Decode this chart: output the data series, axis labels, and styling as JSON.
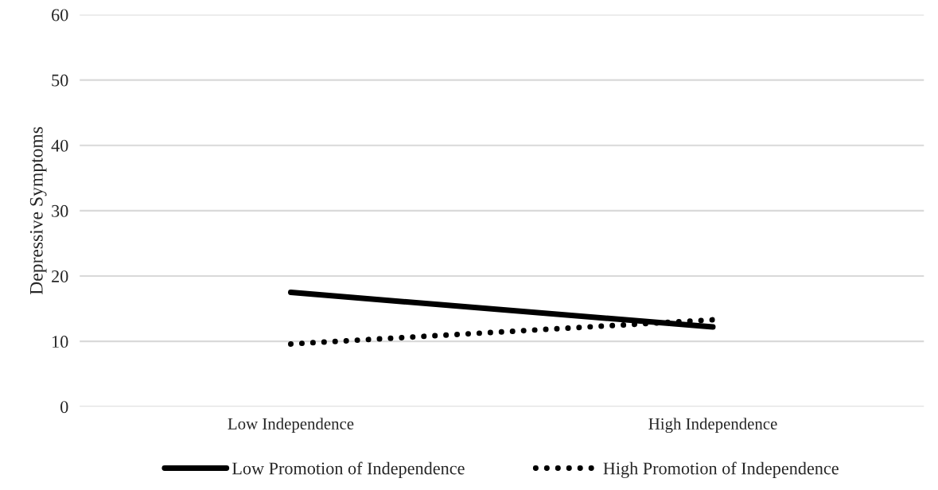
{
  "chart_data": {
    "type": "line",
    "ylabel": "Depressive Symptoms",
    "categories": [
      "Low Independence",
      "High Independence"
    ],
    "series": [
      {
        "name": "Low Promotion of Independence",
        "color": "#000000",
        "values": [
          17.5,
          12.2
        ],
        "line_style": "solid"
      },
      {
        "name": "High Promotion of Independence",
        "color": "#000000",
        "values": [
          9.6,
          13.3
        ],
        "line_style": "dotted"
      }
    ],
    "ylim": [
      0,
      60
    ],
    "yticks": [
      0,
      10,
      20,
      30,
      40,
      50,
      60
    ],
    "grid": "y",
    "legend": "bottom",
    "marker": "none"
  }
}
